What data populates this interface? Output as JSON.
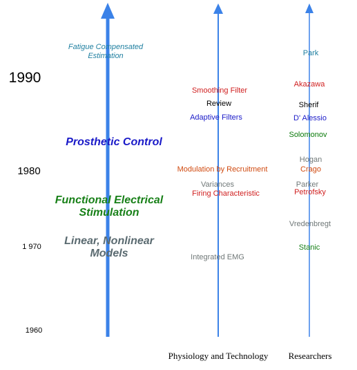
{
  "colors": {
    "arrow": "#3b82e8",
    "teal": "#1f7fa0",
    "red": "#d02020",
    "black": "#000000",
    "blue": "#1a1ac8",
    "green": "#188018",
    "orange": "#d04a10",
    "gray": "#707878",
    "dark_green": "#0a7a0a",
    "slate": "#5a6a70"
  },
  "years": {
    "y1990": "1990",
    "y1980": "1980",
    "y1970": "1 970",
    "y1960": "1960"
  },
  "topics": {
    "fatigue_line1": "Fatigue Compensated",
    "fatigue_line2": "Estimation",
    "prosthetic": "Prosthetic Control",
    "fes_line1": "Functional Electrical",
    "fes_line2": "Stimulation",
    "models_line1": "Linear, Nonlinear",
    "models_line2": "Models"
  },
  "physiology": {
    "header": "Physiology and Technology",
    "smoothing": "Smoothing Filter",
    "review": "Review",
    "adaptive": "Adaptive Filters",
    "modulation": "Modulation by Recruitment",
    "variances": "Variances",
    "firing": "Firing Characteristic",
    "integrated": "Integrated EMG"
  },
  "researchers": {
    "header": "Researchers",
    "park": "Park",
    "akazawa": "Akazawa",
    "sherif": "Sherif",
    "dalessio": "D' Alessio",
    "solomonov": "Solomonov",
    "hogan": "Hogan",
    "crago": "Crago",
    "parker": "Parker",
    "petrofsky": "Petrofsky",
    "vredenbregt": "Vredenbregt",
    "stanic": "Stanic"
  }
}
